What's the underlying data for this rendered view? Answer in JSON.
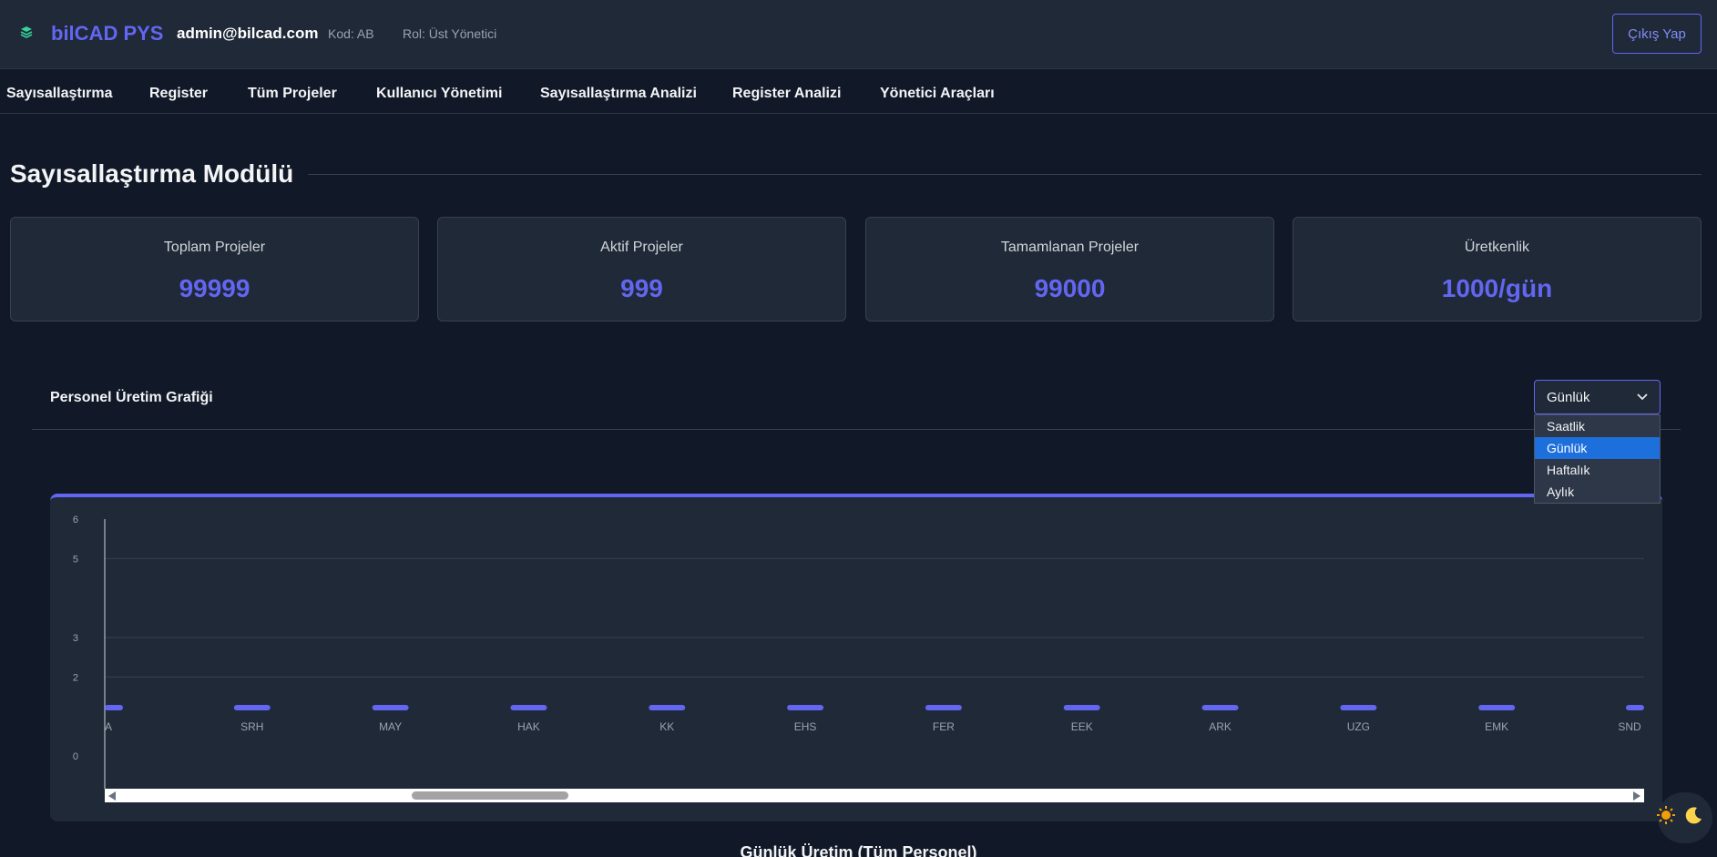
{
  "header": {
    "brand": "bilCAD PYS",
    "logo_icon": "layers-icon",
    "user_email": "admin@bilcad.com",
    "user_code": "Kod: AB",
    "user_role": "Rol: Üst Yönetici",
    "logout_label": "Çıkış Yap"
  },
  "nav": {
    "items": [
      "Sayısallaştırma",
      "Register",
      "Tüm Projeler",
      "Kullanıcı Yönetimi",
      "Sayısallaştırma Analizi",
      "Register Analizi",
      "Yönetici Araçları"
    ]
  },
  "page": {
    "title": "Sayısallaştırma Modülü"
  },
  "stats": [
    {
      "label": "Toplam Projeler",
      "value": "99999"
    },
    {
      "label": "Aktif Projeler",
      "value": "999"
    },
    {
      "label": "Tamamlanan Projeler",
      "value": "99000"
    },
    {
      "label": "Üretkenlik",
      "value": "1000/gün"
    }
  ],
  "chart_section": {
    "title": "Personel Üretim Grafiği",
    "selected_period": "Günlük",
    "period_options": [
      "Saatlik",
      "Günlük",
      "Haftalık",
      "Aylık"
    ],
    "bottom_title": "Günlük Üretim (Tüm Personel)"
  },
  "chart_data": {
    "type": "bar",
    "categories": [
      "A",
      "SRH",
      "MAY",
      "HAK",
      "KK",
      "EHS",
      "FER",
      "EEK",
      "ARK",
      "UZG",
      "EMK",
      "SND"
    ],
    "values": [
      0,
      0,
      0,
      0,
      0,
      0,
      0,
      0,
      0,
      0,
      0,
      0
    ],
    "y_ticks": [
      "0",
      "2",
      "3",
      "5",
      "6"
    ],
    "ylim": [
      0,
      6
    ],
    "grid": true,
    "bar_color": "#6366f1"
  },
  "colors": {
    "accent": "#6366f1",
    "background": "#111827",
    "card": "#1f2937"
  },
  "theme_toggle": {
    "icons": [
      "sun-icon",
      "moon-icon"
    ]
  }
}
